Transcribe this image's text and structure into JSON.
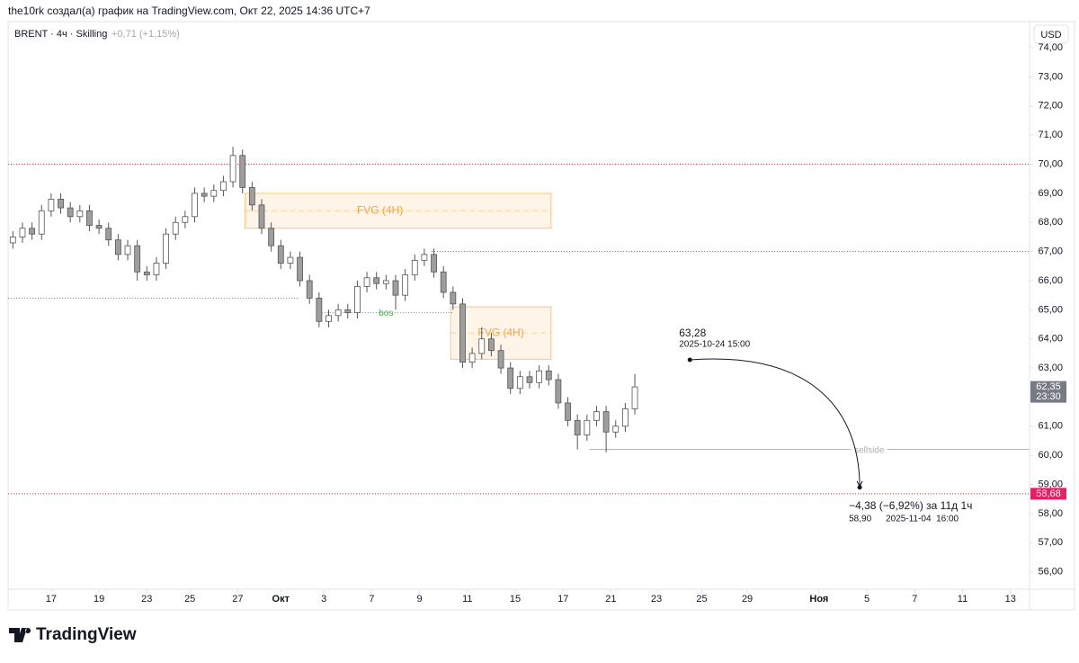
{
  "header": {
    "credit": "the10rk создал(а) график на TradingView.com, Окт 22, 2025 14:36 UTC+7"
  },
  "footer": {
    "brand": "TradingView"
  },
  "chart_data": {
    "type": "candlestick",
    "symbol_label": "BRENT · 4ч · Skilling",
    "change_label": "+0,71 (+1,15%)",
    "currency": "USD",
    "up_color": "#ffffff",
    "down_color": "#9e9e9e",
    "border_color": "#555555",
    "grid": false,
    "xlim": [
      -1.8,
      40.9
    ],
    "xticks": [
      {
        "value": 0,
        "label": "17"
      },
      {
        "value": 2,
        "label": "19"
      },
      {
        "value": 4,
        "label": "23"
      },
      {
        "value": 5.8,
        "label": "25"
      },
      {
        "value": 7.8,
        "label": "27"
      },
      {
        "value": 9.6,
        "label": "Окт"
      },
      {
        "value": 11.4,
        "label": "3"
      },
      {
        "value": 13.4,
        "label": "7"
      },
      {
        "value": 15.4,
        "label": "9"
      },
      {
        "value": 17.4,
        "label": "11"
      },
      {
        "value": 19.4,
        "label": "15"
      },
      {
        "value": 21.4,
        "label": "17"
      },
      {
        "value": 23.4,
        "label": "21"
      },
      {
        "value": 25.3,
        "label": "23"
      },
      {
        "value": 27.2,
        "label": "25"
      },
      {
        "value": 29.1,
        "label": "29"
      },
      {
        "value": 32.1,
        "label": "Ноя"
      },
      {
        "value": 34.1,
        "label": "5"
      },
      {
        "value": 36.1,
        "label": "7"
      },
      {
        "value": 38.1,
        "label": "11"
      },
      {
        "value": 40.1,
        "label": "13"
      }
    ],
    "ylim": [
      55.4,
      74.9
    ],
    "yticks": [
      {
        "value": 56,
        "label": "56,00"
      },
      {
        "value": 57,
        "label": "57,00"
      },
      {
        "value": 58,
        "label": "58,00"
      },
      {
        "value": 59,
        "label": "59,00"
      },
      {
        "value": 60,
        "label": "60,00"
      },
      {
        "value": 61,
        "label": "61,00"
      },
      {
        "value": 62,
        "label": "62,00"
      },
      {
        "value": 63,
        "label": "63,00"
      },
      {
        "value": 64,
        "label": "64,00"
      },
      {
        "value": 65,
        "label": "65,00"
      },
      {
        "value": 66,
        "label": "66,00"
      },
      {
        "value": 67,
        "label": "67,00"
      },
      {
        "value": 68,
        "label": "68,00"
      },
      {
        "value": 69,
        "label": "69,00"
      },
      {
        "value": 70,
        "label": "70,00"
      },
      {
        "value": 71,
        "label": "71,00"
      },
      {
        "value": 72,
        "label": "72,00"
      },
      {
        "value": 73,
        "label": "73,00"
      },
      {
        "value": 74,
        "label": "74,00"
      }
    ],
    "candles": {
      "x": [
        -1.6,
        -1.2,
        -0.8,
        -0.4,
        0,
        0.4,
        0.8,
        1.2,
        1.6,
        2,
        2.4,
        2.8,
        3.2,
        3.6,
        4,
        4.4,
        4.8,
        5.2,
        5.6,
        6,
        6.4,
        6.8,
        7.2,
        7.6,
        8,
        8.4,
        8.8,
        9.2,
        9.6,
        10,
        10.4,
        10.8,
        11.2,
        11.6,
        12,
        12.4,
        12.8,
        13.2,
        13.6,
        14,
        14.4,
        14.8,
        15.2,
        15.6,
        16,
        16.4,
        16.8,
        17.2,
        17.6,
        18,
        18.4,
        18.8,
        19.2,
        19.6,
        20,
        20.4,
        20.8,
        21.2,
        21.6,
        22,
        22.4,
        22.8,
        23.2,
        23.6,
        24,
        24.4
      ],
      "open": [
        67.3,
        67.5,
        67.8,
        67.6,
        68.4,
        68.8,
        68.5,
        68.2,
        68.4,
        67.9,
        67.8,
        67.4,
        66.9,
        67.2,
        66.3,
        66.2,
        66.6,
        67.6,
        68.0,
        68.2,
        69.0,
        68.9,
        69.1,
        69.4,
        70.3,
        69.2,
        68.6,
        67.8,
        67.2,
        66.6,
        66.8,
        66.0,
        65.4,
        64.6,
        64.8,
        65.0,
        64.9,
        65.8,
        66.1,
        65.9,
        66.0,
        65.5,
        66.2,
        66.7,
        66.9,
        66.3,
        65.6,
        65.2,
        63.2,
        63.5,
        64.0,
        63.6,
        63.0,
        62.3,
        62.7,
        62.5,
        62.9,
        62.6,
        61.8,
        61.2,
        60.7,
        61.2,
        61.5,
        60.8,
        61.0,
        61.6
      ],
      "high": [
        67.7,
        68.0,
        68.0,
        68.6,
        69.0,
        69.0,
        68.7,
        68.6,
        68.6,
        68.1,
        68.0,
        67.6,
        67.4,
        67.4,
        66.5,
        66.8,
        67.8,
        68.2,
        68.4,
        69.2,
        69.2,
        69.3,
        69.6,
        70.6,
        70.5,
        69.4,
        68.8,
        68.0,
        67.4,
        67.0,
        67.0,
        66.2,
        65.6,
        65.0,
        65.2,
        65.2,
        66.0,
        66.3,
        66.3,
        66.2,
        66.2,
        66.4,
        66.9,
        67.1,
        67.1,
        66.5,
        65.8,
        65.4,
        63.7,
        64.4,
        64.2,
        63.8,
        63.2,
        62.9,
        62.9,
        63.1,
        63.1,
        62.8,
        62.0,
        61.4,
        61.4,
        61.7,
        61.7,
        61.2,
        61.8,
        62.8
      ],
      "low": [
        67.1,
        67.3,
        67.4,
        67.4,
        68.2,
        68.3,
        68.0,
        68.0,
        67.7,
        67.6,
        67.2,
        66.7,
        66.7,
        66.0,
        66.0,
        66.0,
        66.4,
        67.4,
        67.8,
        68.0,
        68.7,
        68.7,
        68.9,
        69.2,
        69.0,
        68.4,
        67.6,
        67.0,
        66.4,
        66.4,
        65.8,
        65.2,
        64.4,
        64.4,
        64.6,
        64.7,
        64.7,
        65.6,
        65.7,
        65.7,
        65.0,
        65.3,
        66.0,
        66.5,
        66.1,
        65.4,
        65.0,
        63.0,
        63.0,
        63.3,
        63.4,
        62.8,
        62.1,
        62.1,
        62.3,
        62.3,
        62.4,
        61.6,
        61.0,
        60.2,
        60.5,
        61.0,
        60.1,
        60.6,
        60.8,
        61.4
      ],
      "close": [
        67.5,
        67.8,
        67.6,
        68.4,
        68.8,
        68.5,
        68.2,
        68.4,
        67.9,
        67.8,
        67.4,
        66.9,
        67.2,
        66.3,
        66.2,
        66.6,
        67.6,
        68.0,
        68.2,
        69.0,
        68.9,
        69.1,
        69.4,
        70.3,
        69.2,
        68.6,
        67.8,
        67.2,
        66.6,
        66.8,
        66.0,
        65.4,
        64.6,
        64.8,
        65.0,
        64.9,
        65.8,
        66.1,
        65.9,
        66.0,
        65.5,
        66.2,
        66.7,
        66.9,
        66.3,
        65.6,
        65.2,
        63.2,
        63.5,
        64.0,
        63.6,
        63.0,
        62.3,
        62.7,
        62.5,
        62.9,
        62.6,
        61.8,
        61.2,
        60.7,
        61.2,
        61.5,
        60.8,
        61.0,
        61.6,
        62.35
      ]
    },
    "levels": [
      {
        "value": 70.0,
        "x": [
          -1.8,
          40.9
        ],
        "color": "#e0303d",
        "style": "dotted"
      },
      {
        "value": 67.0,
        "x": [
          15.9,
          40.9
        ],
        "color": "#e0303d",
        "style": "dotted"
      },
      {
        "value": 65.4,
        "x": [
          -1.8,
          10.3
        ],
        "color": "#4caf50",
        "style": "dotted"
      },
      {
        "value": 64.9,
        "x": [
          11.2,
          16.8
        ],
        "color": "#4caf50",
        "style": "dotted",
        "label": "bos"
      },
      {
        "value": 60.2,
        "x": [
          22.5,
          40.9
        ],
        "color": "#b0b0b0",
        "style": "solid",
        "label": "sellside"
      },
      {
        "value": 58.68,
        "x": [
          -1.8,
          40.9
        ],
        "color": "#e0303d",
        "style": "dotted"
      }
    ],
    "zones": [
      {
        "label": "FVG (4H)",
        "x": [
          8.1,
          20.9
        ],
        "y": [
          67.8,
          69.0
        ],
        "color": "#f7a43a"
      },
      {
        "label": "FVG (4H)",
        "x": [
          16.7,
          20.9
        ],
        "y": [
          63.3,
          65.1
        ],
        "color": "#f7a43a"
      }
    ],
    "price_labels": [
      {
        "value": 62.35,
        "label": "62,35",
        "time": "23:30",
        "color": "#787b86"
      },
      {
        "value": 58.68,
        "label": "58,68",
        "color": "#e91e63"
      }
    ],
    "projection": {
      "start": {
        "x": 26.7,
        "y": {
          "value": 63.28,
          "label": "63,28"
        },
        "date": "2025-10-24 15:00"
      },
      "end": {
        "x": 33.8,
        "y": {
          "value": 58.9,
          "label": "58,90"
        },
        "date": "2025-11-04  16:00"
      },
      "change": "−4,38 (−6,92%) за 11д 1ч"
    }
  }
}
